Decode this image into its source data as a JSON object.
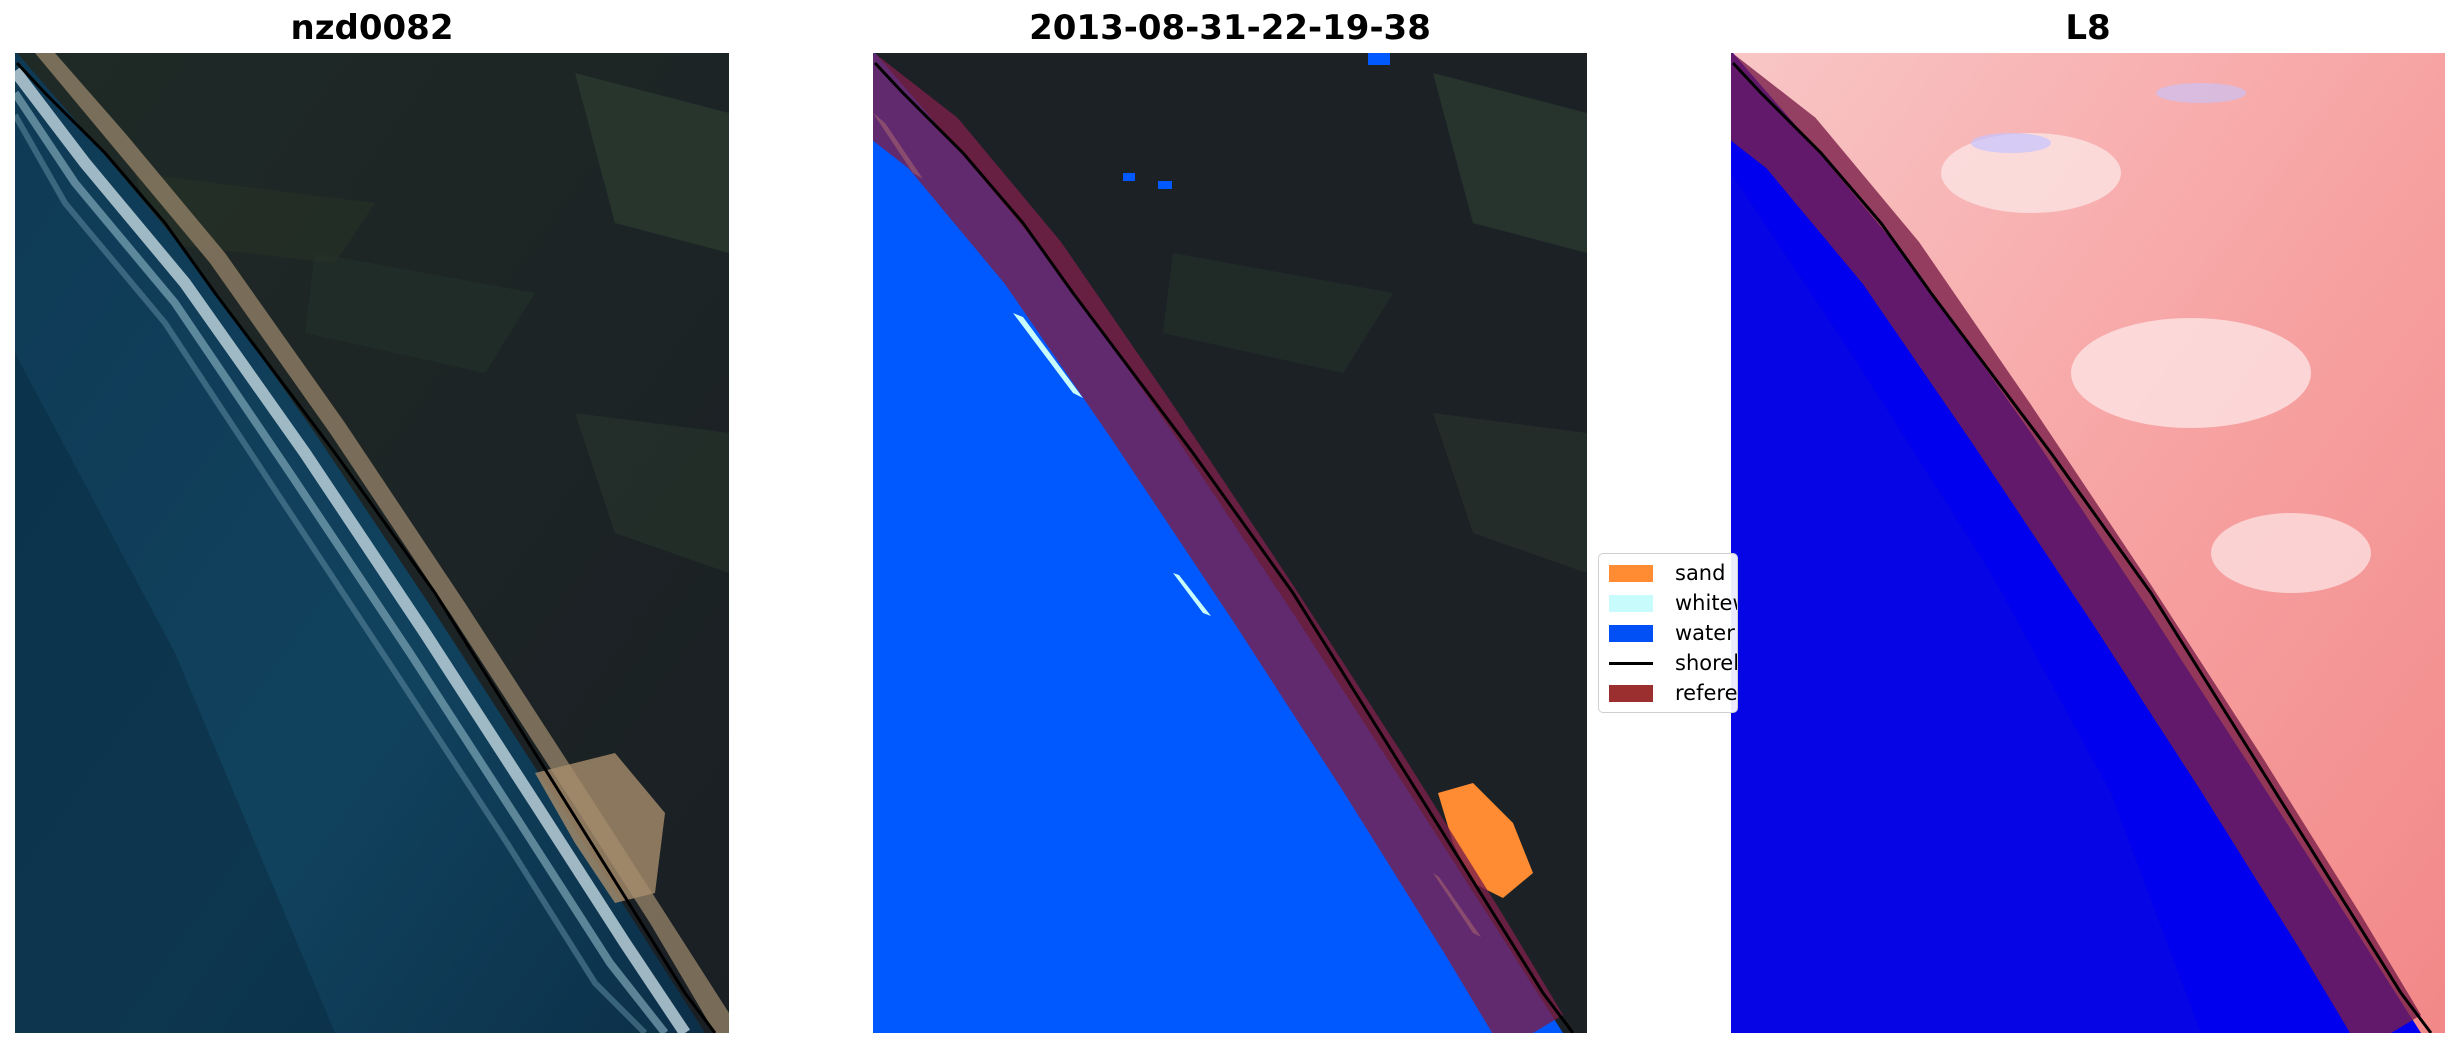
{
  "panels": {
    "left": {
      "title": "nzd0082"
    },
    "center": {
      "title": "2013-08-31-22-19-38"
    },
    "right": {
      "title": "L8"
    }
  },
  "legend": {
    "items": [
      {
        "label": "sand",
        "color": "#ff8c33",
        "kind": "patch"
      },
      {
        "label": "whitewater",
        "color": "#c8fcfc",
        "kind": "patch"
      },
      {
        "label": "water",
        "color": "#0050f5",
        "kind": "patch"
      },
      {
        "label": "shoreline",
        "color": "#000000",
        "kind": "line"
      },
      {
        "label": "reference shoreline buffer",
        "color": "#9b2e2e",
        "kind": "patch"
      }
    ]
  },
  "colors": {
    "land_dark": "#1c2126",
    "ocean": "#0e3552",
    "classified_water": "#0058ff",
    "index_water": "#0000ee",
    "index_land": "#f7a0a0",
    "buffer": "#7a1f4a"
  }
}
